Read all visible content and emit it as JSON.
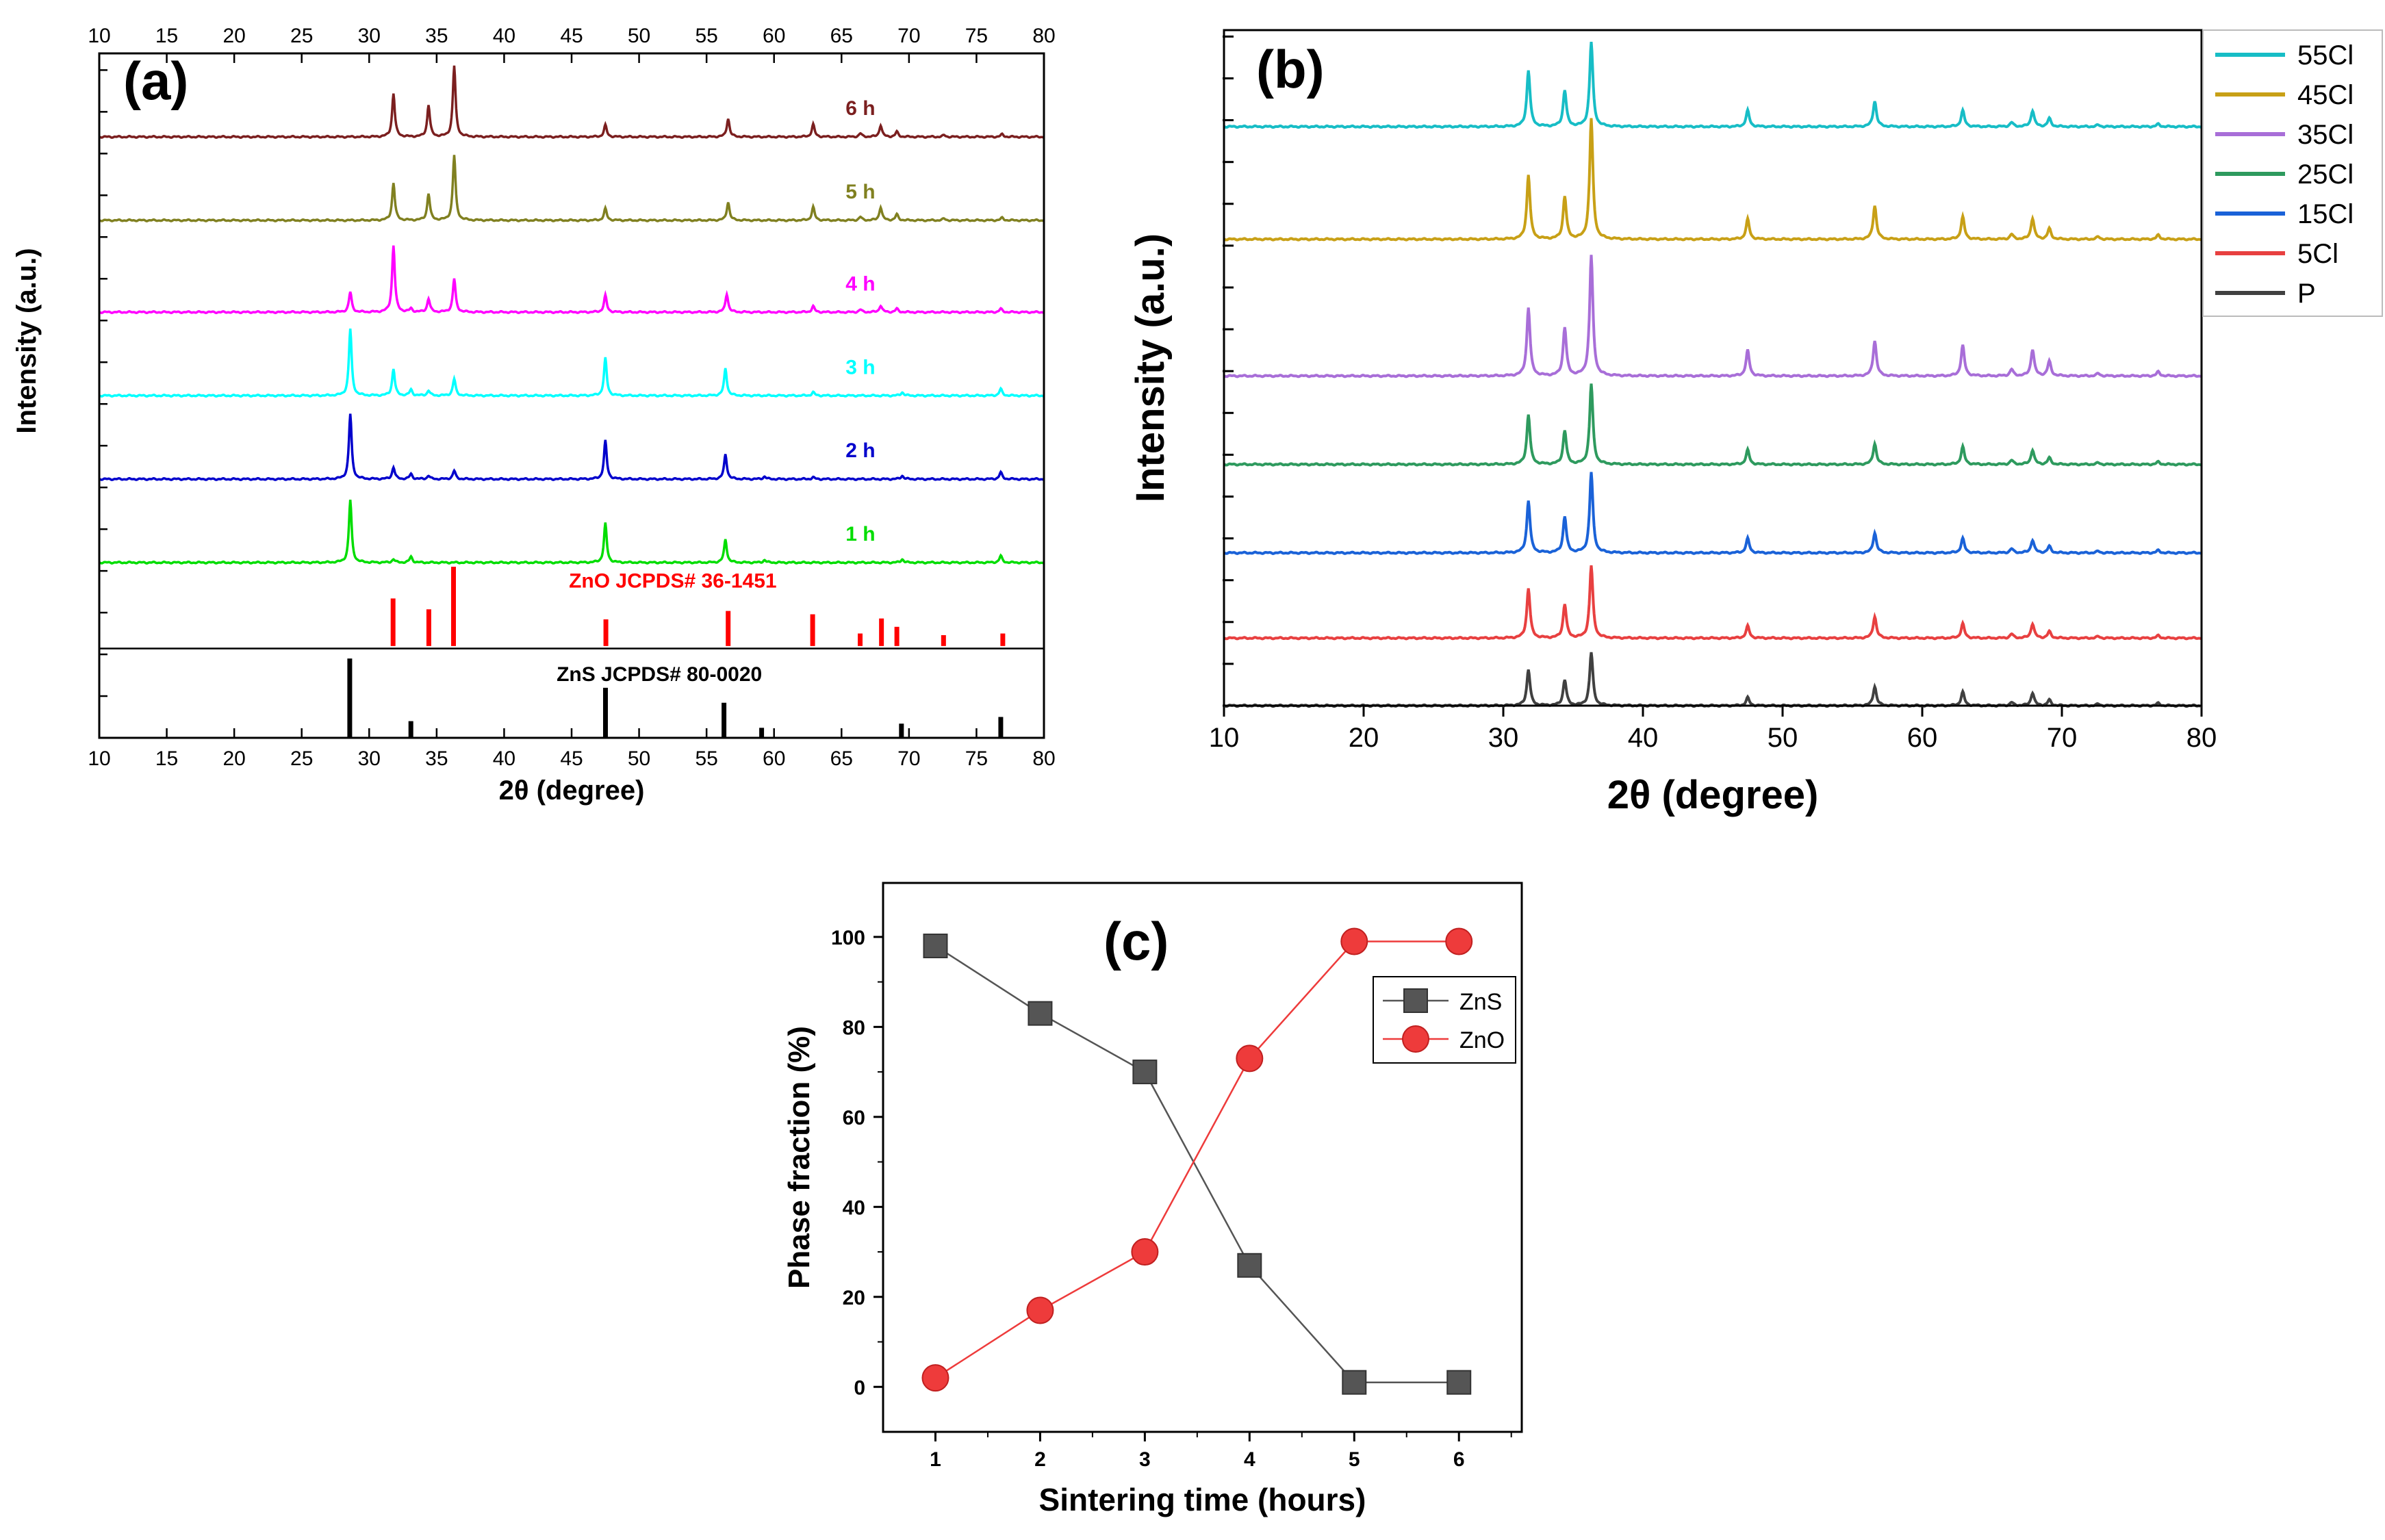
{
  "chart_data": [
    {
      "panel": "(a)",
      "type": "line",
      "xlabel": "2θ (degree)",
      "ylabel": "Intensity (a.u.)",
      "xlim": [
        10,
        80
      ],
      "xticks": [
        10,
        15,
        20,
        25,
        30,
        35,
        40,
        45,
        50,
        55,
        60,
        65,
        70,
        75,
        80
      ],
      "ylim": [
        0,
        8.2
      ],
      "series": [
        {
          "name": "6 h",
          "color": "#7b1f1f",
          "baseline": 7.2,
          "x": [
            31.8,
            34.4,
            36.3,
            47.5,
            56.6,
            62.9,
            66.4,
            67.9,
            69.1,
            72.6,
            76.9
          ],
          "y": [
            0.52,
            0.38,
            0.85,
            0.14,
            0.22,
            0.15,
            0.04,
            0.14,
            0.06,
            0.02,
            0.03
          ]
        },
        {
          "name": "5 h",
          "color": "#808020",
          "baseline": 6.2,
          "x": [
            31.8,
            34.4,
            36.3,
            47.5,
            56.6,
            62.9,
            66.4,
            67.9,
            69.1,
            72.6,
            76.9
          ],
          "y": [
            0.45,
            0.32,
            0.78,
            0.14,
            0.22,
            0.16,
            0.04,
            0.16,
            0.07,
            0.02,
            0.03
          ]
        },
        {
          "name": "4 h",
          "color": "#ff00ff",
          "baseline": 5.1,
          "x": [
            28.6,
            31.8,
            33.1,
            34.4,
            36.3,
            47.5,
            56.5,
            62.9,
            66.4,
            67.9,
            69.1,
            76.8
          ],
          "y": [
            0.24,
            0.8,
            0.04,
            0.16,
            0.4,
            0.2,
            0.22,
            0.07,
            0.03,
            0.08,
            0.04,
            0.04
          ]
        },
        {
          "name": "3 h",
          "color": "#00ffff",
          "baseline": 4.1,
          "x": [
            28.6,
            31.8,
            33.1,
            34.4,
            36.3,
            47.5,
            56.4,
            62.9,
            69.5,
            76.8
          ],
          "y": [
            0.8,
            0.32,
            0.07,
            0.06,
            0.2,
            0.45,
            0.33,
            0.04,
            0.04,
            0.08
          ]
        },
        {
          "name": "2 h",
          "color": "#0000cc",
          "baseline": 3.1,
          "x": [
            28.6,
            31.8,
            33.1,
            34.4,
            36.3,
            47.5,
            56.4,
            59.3,
            62.9,
            69.5,
            76.8
          ],
          "y": [
            0.78,
            0.14,
            0.06,
            0.04,
            0.1,
            0.46,
            0.3,
            0.03,
            0.02,
            0.04,
            0.08
          ]
        },
        {
          "name": "1 h",
          "color": "#00dd00",
          "baseline": 2.1,
          "x": [
            28.6,
            31.8,
            33.1,
            47.5,
            56.4,
            59.3,
            69.5,
            76.8
          ],
          "y": [
            0.75,
            0.04,
            0.07,
            0.47,
            0.28,
            0.03,
            0.04,
            0.08
          ]
        },
        {
          "name": "ZnO JCPDS# 36-1451",
          "color": "#ff0000",
          "baseline": 1.1,
          "type": "stick",
          "x": [
            31.77,
            34.42,
            36.25,
            47.54,
            56.6,
            62.86,
            66.38,
            67.96,
            69.1,
            72.56,
            76.95
          ],
          "y": [
            0.57,
            0.44,
            0.95,
            0.32,
            0.42,
            0.38,
            0.15,
            0.33,
            0.23,
            0.13,
            0.15
          ]
        },
        {
          "name": "ZnS JCPDS# 80-0020",
          "color": "#000000",
          "baseline": 0.0,
          "type": "stick",
          "x": [
            28.56,
            33.09,
            47.51,
            56.29,
            59.08,
            69.44,
            76.8
          ],
          "y": [
            0.95,
            0.2,
            0.6,
            0.42,
            0.12,
            0.17,
            0.25
          ]
        }
      ]
    },
    {
      "panel": "(b)",
      "type": "line",
      "xlabel": "2θ (degree)",
      "ylabel": "Intensity (a.u.)",
      "xlim": [
        10,
        80
      ],
      "xticks": [
        10,
        20,
        30,
        40,
        50,
        60,
        70,
        80
      ],
      "ylim": [
        0,
        8.4
      ],
      "legend_position": "top-right",
      "peaks_x": [
        31.8,
        34.4,
        36.3,
        47.5,
        56.6,
        62.9,
        66.4,
        67.9,
        69.1,
        72.6,
        76.9
      ],
      "series": [
        {
          "name": "55Cl",
          "color": "#17bdc6",
          "baseline": 7.2,
          "y": [
            0.7,
            0.45,
            1.05,
            0.2,
            0.32,
            0.2,
            0.05,
            0.2,
            0.1,
            0.02,
            0.03
          ]
        },
        {
          "name": "45Cl",
          "color": "#c8a016",
          "baseline": 5.8,
          "y": [
            0.8,
            0.53,
            1.5,
            0.25,
            0.42,
            0.28,
            0.06,
            0.26,
            0.13,
            0.03,
            0.05
          ]
        },
        {
          "name": "35Cl",
          "color": "#a86ed8",
          "baseline": 4.1,
          "y": [
            0.85,
            0.6,
            1.5,
            0.32,
            0.44,
            0.38,
            0.08,
            0.33,
            0.18,
            0.03,
            0.05
          ]
        },
        {
          "name": "25Cl",
          "color": "#2e9a5e",
          "baseline": 3.0,
          "y": [
            0.62,
            0.42,
            1.0,
            0.18,
            0.26,
            0.22,
            0.05,
            0.18,
            0.08,
            0.02,
            0.03
          ]
        },
        {
          "name": "15Cl",
          "color": "#1a62d8",
          "baseline": 1.9,
          "y": [
            0.65,
            0.45,
            1.0,
            0.18,
            0.25,
            0.18,
            0.05,
            0.16,
            0.08,
            0.02,
            0.03
          ]
        },
        {
          "name": "5Cl",
          "color": "#e84040",
          "baseline": 0.84,
          "y": [
            0.62,
            0.42,
            0.9,
            0.15,
            0.27,
            0.18,
            0.05,
            0.18,
            0.08,
            0.02,
            0.03
          ]
        },
        {
          "name": "P",
          "color": "#404040",
          "baseline": 0.0,
          "y": [
            0.45,
            0.32,
            0.66,
            0.1,
            0.24,
            0.17,
            0.04,
            0.16,
            0.07,
            0.02,
            0.03
          ]
        }
      ]
    },
    {
      "panel": "(c)",
      "type": "line",
      "xlabel": "Sintering time (hours)",
      "ylabel": "Phase fraction (%)",
      "xlim": [
        0.5,
        6.6
      ],
      "xticks": [
        1,
        2,
        3,
        4,
        5,
        6
      ],
      "ylim": [
        -10,
        112
      ],
      "yticks": [
        0,
        20,
        40,
        60,
        80,
        100
      ],
      "legend_position": "center-right",
      "series": [
        {
          "name": "ZnS",
          "color": "#555555",
          "marker": "square",
          "x": [
            1,
            2,
            3,
            4,
            5,
            6
          ],
          "y": [
            98,
            83,
            70,
            27,
            1,
            1
          ]
        },
        {
          "name": "ZnO",
          "color": "#ee3b3b",
          "marker": "circle",
          "x": [
            1,
            2,
            3,
            4,
            5,
            6
          ],
          "y": [
            2,
            17,
            30,
            73,
            99,
            99
          ]
        }
      ]
    }
  ]
}
